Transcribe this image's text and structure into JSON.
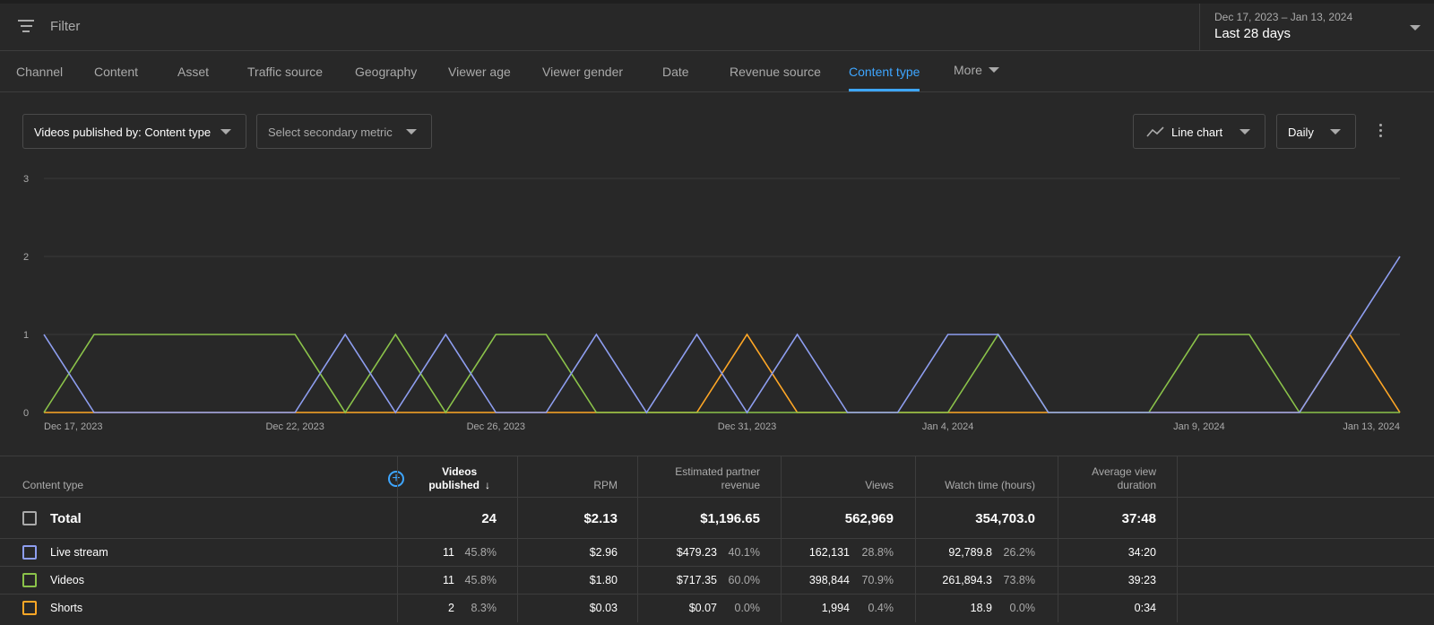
{
  "filter": {
    "placeholder": "Filter"
  },
  "date_picker": {
    "range": "Dec 17, 2023 – Jan 13, 2024",
    "label": "Last 28 days"
  },
  "tabs": [
    {
      "label": "Channel"
    },
    {
      "label": "Content"
    },
    {
      "label": "Asset"
    },
    {
      "label": "Traffic source"
    },
    {
      "label": "Geography"
    },
    {
      "label": "Viewer age"
    },
    {
      "label": "Viewer gender"
    },
    {
      "label": "Date"
    },
    {
      "label": "Revenue source"
    },
    {
      "label": "Content type"
    },
    {
      "label": "More"
    }
  ],
  "active_tab": "Content type",
  "toolbar": {
    "primary_metric": "Videos published by: Content type",
    "secondary_metric": "Select secondary metric",
    "chart_type": "Line chart",
    "interval": "Daily"
  },
  "colors": {
    "live_stream": "#8e9ef0",
    "videos": "#8bc34a",
    "shorts": "#ffa726",
    "accent": "#3ea6ff"
  },
  "chart_data": {
    "type": "line",
    "y_ticks": [
      "0",
      "1",
      "2",
      "3"
    ],
    "ylim": [
      0,
      3
    ],
    "x_labels": [
      "Dec 17, 2023",
      "Dec 22, 2023",
      "Dec 26, 2023",
      "Dec 31, 2023",
      "Jan 4, 2024",
      "Jan 9, 2024",
      "Jan 13, 2024"
    ],
    "x_label_days": [
      0,
      5,
      9,
      14,
      18,
      23,
      27
    ],
    "days": 28,
    "series": [
      {
        "name": "Live stream",
        "values": [
          1,
          0,
          0,
          0,
          0,
          0,
          1,
          0,
          1,
          0,
          0,
          1,
          0,
          1,
          0,
          1,
          0,
          0,
          1,
          1,
          0,
          0,
          0,
          0,
          0,
          0,
          1,
          2
        ]
      },
      {
        "name": "Videos",
        "values": [
          0,
          1,
          1,
          1,
          1,
          1,
          0,
          1,
          0,
          1,
          1,
          0,
          0,
          0,
          0,
          0,
          0,
          0,
          0,
          1,
          0,
          0,
          0,
          1,
          1,
          0,
          0,
          0
        ]
      },
      {
        "name": "Shorts",
        "values": [
          0,
          0,
          0,
          0,
          0,
          0,
          0,
          0,
          0,
          0,
          0,
          0,
          0,
          0,
          1,
          0,
          0,
          0,
          0,
          0,
          0,
          0,
          0,
          0,
          0,
          0,
          1,
          0
        ]
      }
    ]
  },
  "table": {
    "headers": {
      "content_type": "Content type",
      "videos_published_1": "Videos",
      "videos_published_2": "published",
      "rpm": "RPM",
      "revenue_1": "Estimated partner",
      "revenue_2": "revenue",
      "views": "Views",
      "watch_time": "Watch time (hours)",
      "avd_1": "Average view",
      "avd_2": "duration"
    },
    "total": {
      "label": "Total",
      "videos": "24",
      "rpm": "$2.13",
      "revenue": "$1,196.65",
      "views": "562,969",
      "watch_time": "354,703.0",
      "avd": "37:48"
    },
    "rows": [
      {
        "label": "Live stream",
        "videos": "11",
        "videos_pct": "45.8%",
        "rpm": "$2.96",
        "revenue": "$479.23",
        "revenue_pct": "40.1%",
        "views": "162,131",
        "views_pct": "28.8%",
        "watch_time": "92,789.8",
        "watch_pct": "26.2%",
        "avd": "34:20"
      },
      {
        "label": "Videos",
        "videos": "11",
        "videos_pct": "45.8%",
        "rpm": "$1.80",
        "revenue": "$717.35",
        "revenue_pct": "60.0%",
        "views": "398,844",
        "views_pct": "70.9%",
        "watch_time": "261,894.3",
        "watch_pct": "73.8%",
        "avd": "39:23"
      },
      {
        "label": "Shorts",
        "videos": "2",
        "videos_pct": "8.3%",
        "rpm": "$0.03",
        "revenue": "$0.07",
        "revenue_pct": "0.0%",
        "views": "1,994",
        "views_pct": "0.4%",
        "watch_time": "18.9",
        "watch_pct": "0.0%",
        "avd": "0:34"
      }
    ]
  }
}
